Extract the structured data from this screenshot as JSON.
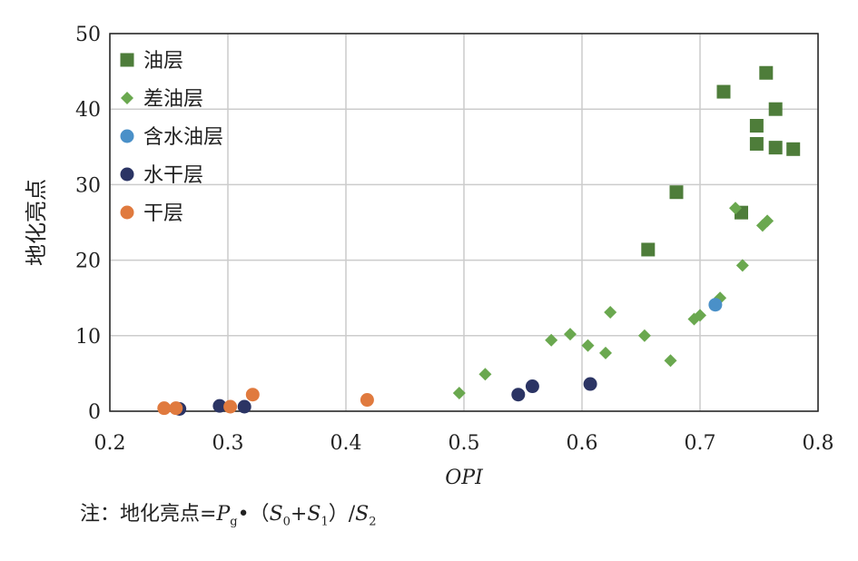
{
  "chart_data": {
    "type": "scatter",
    "xlabel": "OPI",
    "ylabel": "地化亮点",
    "xlim": [
      0.2,
      0.8
    ],
    "ylim": [
      0,
      50
    ],
    "x_ticks": [
      "0.2",
      "0.3",
      "0.4",
      "0.5",
      "0.6",
      "0.7",
      "0.8"
    ],
    "y_ticks": [
      "0",
      "10",
      "20",
      "30",
      "40",
      "50"
    ],
    "grid": true,
    "legend_position": "top-left",
    "series": [
      {
        "name": "油层",
        "marker": "square",
        "color": "#4e7d3a",
        "points": [
          [
            0.656,
            21.4
          ],
          [
            0.68,
            29.0
          ],
          [
            0.72,
            42.3
          ],
          [
            0.735,
            26.3
          ],
          [
            0.748,
            35.4
          ],
          [
            0.748,
            37.8
          ],
          [
            0.756,
            44.8
          ],
          [
            0.764,
            40.0
          ],
          [
            0.764,
            34.9
          ],
          [
            0.779,
            34.7
          ]
        ]
      },
      {
        "name": "差油层",
        "marker": "diamond",
        "color": "#6aa84f",
        "points": [
          [
            0.496,
            2.4
          ],
          [
            0.518,
            4.9
          ],
          [
            0.574,
            9.4
          ],
          [
            0.59,
            10.2
          ],
          [
            0.605,
            8.7
          ],
          [
            0.62,
            7.7
          ],
          [
            0.624,
            13.1
          ],
          [
            0.653,
            10.0
          ],
          [
            0.675,
            6.7
          ],
          [
            0.695,
            12.2
          ],
          [
            0.7,
            12.7
          ],
          [
            0.717,
            15.0
          ],
          [
            0.73,
            26.9
          ],
          [
            0.736,
            19.3
          ],
          [
            0.753,
            24.6
          ],
          [
            0.757,
            25.2
          ]
        ]
      },
      {
        "name": "含水油层",
        "marker": "circle",
        "color": "#4a90c8",
        "points": [
          [
            0.713,
            14.1
          ]
        ]
      },
      {
        "name": "水干层",
        "marker": "circle",
        "color": "#2b3464",
        "points": [
          [
            0.259,
            0.3
          ],
          [
            0.293,
            0.7
          ],
          [
            0.314,
            0.6
          ],
          [
            0.546,
            2.2
          ],
          [
            0.558,
            3.3
          ],
          [
            0.607,
            3.6
          ]
        ]
      },
      {
        "name": "干层",
        "marker": "circle",
        "color": "#e07a3e",
        "points": [
          [
            0.246,
            0.4
          ],
          [
            0.256,
            0.4
          ],
          [
            0.302,
            0.6
          ],
          [
            0.321,
            2.2
          ],
          [
            0.418,
            1.5
          ]
        ]
      }
    ]
  },
  "note": {
    "prefix": "注：地化亮点=",
    "p": "P",
    "p_sub": "g",
    "mid": "•（",
    "s0": "S",
    "s0_sub": "0",
    "plus": "+",
    "s1": "S",
    "s1_sub": "1",
    "close": "）/",
    "s2": "S",
    "s2_sub": "2"
  }
}
